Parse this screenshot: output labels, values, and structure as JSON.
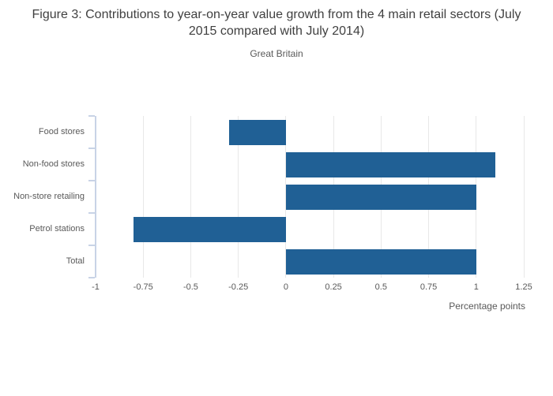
{
  "chart_data": {
    "type": "bar",
    "orientation": "horizontal",
    "title": "Figure 3: Contributions to year-on-year value growth from the 4 main retail sectors (July 2015 compared with July 2014)",
    "subtitle": "Great Britain",
    "categories": [
      "Food stores",
      "Non-food stores",
      "Non-store retailing",
      "Petrol stations",
      "Total"
    ],
    "values": [
      -0.3,
      1.1,
      1.0,
      -0.8,
      1.0
    ],
    "xlabel": "Percentage points",
    "ylabel": "",
    "xlim": [
      -1,
      1.25
    ],
    "xticks": [
      -1,
      -0.75,
      -0.5,
      -0.25,
      0,
      0.25,
      0.5,
      0.75,
      1,
      1.25
    ],
    "xtick_labels": [
      "-1",
      "-0.75",
      "-0.5",
      "-0.25",
      "0",
      "0.25",
      "0.5",
      "0.75",
      "1",
      "1.25"
    ],
    "grid": true,
    "legend": false,
    "colors": {
      "bar": "#206095",
      "gridline": "#e8e8e8",
      "axis": "#c8d3e6",
      "tick_text": "#595959",
      "title_text": "#404040"
    }
  }
}
